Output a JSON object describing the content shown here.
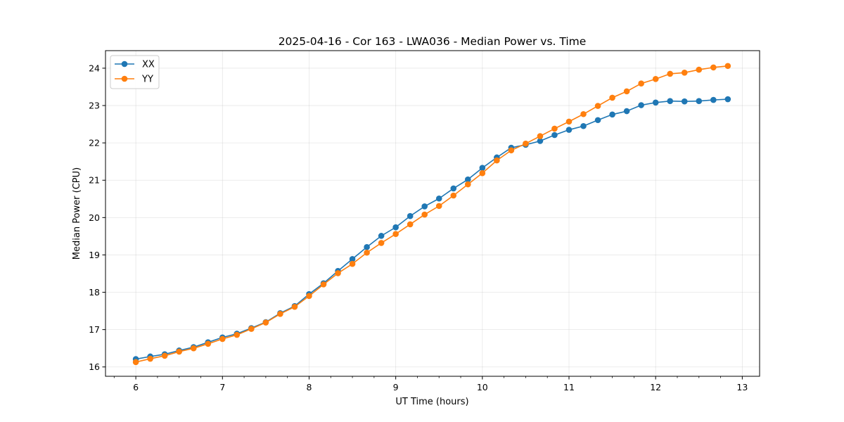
{
  "chart_data": {
    "type": "line",
    "title": "2025-04-16 - Cor 163 - LWA036 - Median Power vs. Time",
    "xlabel": "UT Time (hours)",
    "ylabel": "Median Power (CPU)",
    "xlim": [
      5.65,
      13.2
    ],
    "ylim": [
      15.75,
      24.47
    ],
    "xticks": [
      6,
      7,
      8,
      9,
      10,
      11,
      12,
      13
    ],
    "yticks": [
      16,
      17,
      18,
      19,
      20,
      21,
      22,
      23,
      24
    ],
    "grid": true,
    "legend_position": "top-left",
    "x": [
      6.0,
      6.1667,
      6.3333,
      6.5,
      6.6667,
      6.8333,
      7.0,
      7.1667,
      7.3333,
      7.5,
      7.6667,
      7.8333,
      8.0,
      8.1667,
      8.3333,
      8.5,
      8.6667,
      8.8333,
      9.0,
      9.1667,
      9.3333,
      9.5,
      9.6667,
      9.8333,
      10.0,
      10.1667,
      10.3333,
      10.5,
      10.6667,
      10.8333,
      11.0,
      11.1667,
      11.3333,
      11.5,
      11.6667,
      11.8333,
      12.0,
      12.1667,
      12.3333,
      12.5,
      12.6667,
      12.8333
    ],
    "series": [
      {
        "name": "XX",
        "color": "#1f77b4",
        "values": [
          16.21,
          16.28,
          16.34,
          16.44,
          16.53,
          16.66,
          16.79,
          16.89,
          17.04,
          17.2,
          17.44,
          17.63,
          17.95,
          18.24,
          18.57,
          18.89,
          19.21,
          19.51,
          19.74,
          20.04,
          20.3,
          20.51,
          20.78,
          21.02,
          21.33,
          21.61,
          21.87,
          21.95,
          22.05,
          22.21,
          22.35,
          22.45,
          22.61,
          22.76,
          22.85,
          23.01,
          23.08,
          23.12,
          23.11,
          23.12,
          23.15,
          23.17
        ]
      },
      {
        "name": "YY",
        "color": "#ff7f0e",
        "values": [
          16.13,
          16.22,
          16.3,
          16.41,
          16.5,
          16.62,
          16.75,
          16.86,
          17.02,
          17.19,
          17.42,
          17.61,
          17.9,
          18.21,
          18.51,
          18.76,
          19.06,
          19.32,
          19.56,
          19.82,
          20.08,
          20.31,
          20.59,
          20.89,
          21.19,
          21.53,
          21.8,
          21.98,
          22.18,
          22.38,
          22.57,
          22.77,
          22.99,
          23.21,
          23.38,
          23.59,
          23.71,
          23.85,
          23.88,
          23.96,
          24.02,
          24.06
        ]
      }
    ]
  }
}
